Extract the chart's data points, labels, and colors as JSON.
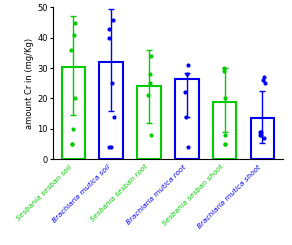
{
  "categories": [
    "Sesbania sesban soil",
    "Brachiaria mutica soil",
    "Sesbania sesban root",
    "Brachiaria mutica root",
    "Sesbania sesban shoot",
    "Brachiaria mutica shoot"
  ],
  "bar_heights": [
    30.5,
    32.0,
    24.0,
    26.5,
    19.0,
    13.5
  ],
  "error_low": [
    14.5,
    16.0,
    12.0,
    14.0,
    9.0,
    5.5
  ],
  "error_high": [
    47.0,
    49.5,
    36.0,
    28.5,
    30.0,
    22.5
  ],
  "bar_colors": [
    "#00cc00",
    "#0000ee",
    "#00cc00",
    "#0000ee",
    "#00cc00",
    "#0000ee"
  ],
  "scatter_points": [
    [
      45,
      36,
      41,
      20,
      10,
      5,
      5
    ],
    [
      46,
      43,
      40,
      25,
      14,
      4,
      4
    ],
    [
      34,
      28,
      25,
      21,
      8
    ],
    [
      31,
      28,
      22,
      14,
      4
    ],
    [
      30,
      29,
      20,
      8,
      5,
      5
    ],
    [
      27,
      26,
      25,
      9,
      9,
      8,
      8,
      7
    ]
  ],
  "scatter_colors": [
    "#00cc00",
    "#0000ee",
    "#00cc00",
    "#0000ee",
    "#00cc00",
    "#0000ee"
  ],
  "ylabel": "amount Cr in (mg/Kg)",
  "ylim": [
    0,
    50
  ],
  "yticks": [
    0,
    10,
    20,
    30,
    40,
    50
  ],
  "background_color": "#ffffff",
  "bar_linewidth": 1.5,
  "label_fontsize": 5.2,
  "label_color_green": "#00cc00",
  "label_color_blue": "#0000ee"
}
